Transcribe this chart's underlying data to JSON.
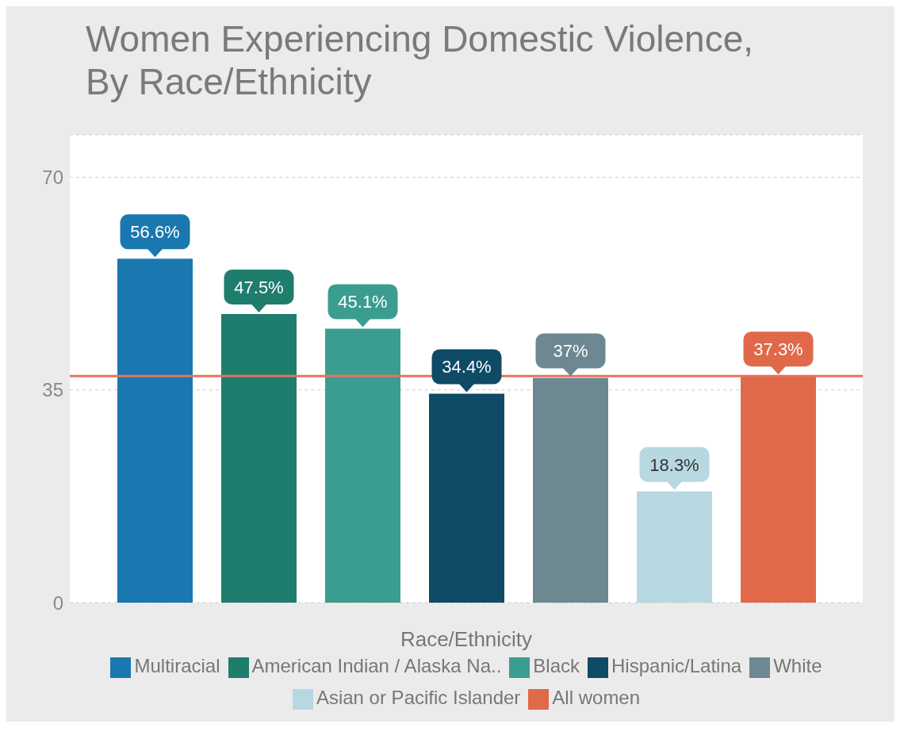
{
  "chart_data": {
    "type": "bar",
    "title": "Women Experiencing Domestic Violence, By Race/Ethnicity",
    "xlabel": "Race/Ethnicity",
    "categories": [
      null
    ],
    "series": [
      {
        "name": "Multiracial",
        "color": "#1a78b0",
        "values": [
          56.6
        ],
        "value_labels": [
          "56.6%"
        ]
      },
      {
        "name": "American Indian / Alaska Na..",
        "color": "#1f7d6e",
        "values": [
          47.5
        ],
        "value_labels": [
          "47.5%"
        ]
      },
      {
        "name": "Black",
        "color": "#3b9d90",
        "values": [
          45.1
        ],
        "value_labels": [
          "45.1%"
        ]
      },
      {
        "name": "Hispanic/Latina",
        "color": "#0f4a66",
        "values": [
          34.4
        ],
        "value_labels": [
          "34.4%"
        ]
      },
      {
        "name": "White",
        "color": "#6d8890",
        "values": [
          37
        ],
        "value_labels": [
          "37%"
        ]
      },
      {
        "name": "Asian or Pacific Islander",
        "color": "#b8d8e1",
        "values": [
          18.3
        ],
        "value_labels": [
          "18.3%"
        ]
      },
      {
        "name": "All women",
        "color": "#e0694a",
        "values": [
          37.3
        ],
        "value_labels": [
          "37.3%"
        ]
      }
    ],
    "ylim": [
      0,
      77
    ],
    "yticks": [
      0,
      35,
      70
    ],
    "grid": "y",
    "legend": "bottom",
    "ref_lines": [
      {
        "axis": "y",
        "value": 37.3,
        "color": "#e8735a"
      }
    ]
  }
}
